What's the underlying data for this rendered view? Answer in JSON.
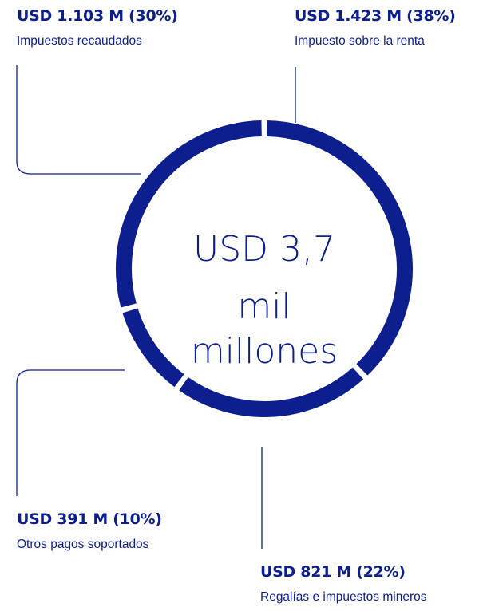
{
  "colors": {
    "accent": "#0d1f8f",
    "background": "#ffffff"
  },
  "chart_data": {
    "type": "pie",
    "style": "donut",
    "total_label_line1": "USD 3,7",
    "total_label_line2": "mil millones",
    "segments": [
      {
        "value_label": "USD 1.423 M (38%)",
        "label": "Impuesto sobre la renta",
        "value": 1423,
        "percent": 38
      },
      {
        "value_label": "USD 821 M (22%)",
        "label": "Regalías e impuestos mineros",
        "value": 821,
        "percent": 22
      },
      {
        "value_label": "USD 391 M (10%)",
        "label": "Otros pagos soportados",
        "value": 391,
        "percent": 10
      },
      {
        "value_label": "USD 1.103 M (30%)",
        "label": "Impuestos recaudados",
        "value": 1103,
        "percent": 30
      }
    ]
  }
}
